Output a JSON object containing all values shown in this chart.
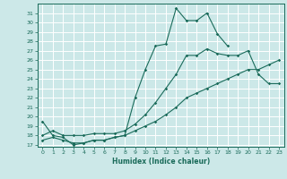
{
  "xlabel": "Humidex (Indice chaleur)",
  "ylabel": "",
  "background_color": "#cce8e8",
  "grid_color": "#ffffff",
  "line_color": "#1a6b5a",
  "xlim": [
    -0.5,
    23.5
  ],
  "ylim": [
    17,
    31.5
  ],
  "yticks": [
    17,
    18,
    19,
    20,
    21,
    22,
    23,
    24,
    25,
    26,
    27,
    28,
    29,
    30,
    31
  ],
  "xticks": [
    0,
    1,
    2,
    3,
    4,
    5,
    6,
    7,
    8,
    9,
    10,
    11,
    12,
    13,
    14,
    15,
    16,
    17,
    18,
    19,
    20,
    21,
    22,
    23
  ],
  "curve1_x": [
    0,
    1,
    2,
    3,
    4,
    5,
    6,
    7,
    8,
    9,
    10,
    11,
    12,
    13,
    14,
    15,
    16,
    17,
    18
  ],
  "curve1_y": [
    19.5,
    18.0,
    17.8,
    17.0,
    17.2,
    17.5,
    17.5,
    17.8,
    18.0,
    22.0,
    25.0,
    27.5,
    27.7,
    31.5,
    30.2,
    30.2,
    31.0,
    28.8,
    27.5
  ],
  "curve2_x": [
    0,
    1,
    2,
    3,
    4,
    5,
    6,
    7,
    8,
    9,
    10,
    11,
    12,
    13,
    14,
    15,
    16,
    17,
    18,
    19,
    20,
    21,
    22,
    23
  ],
  "curve2_y": [
    18.0,
    18.5,
    18.0,
    18.0,
    18.0,
    18.2,
    18.2,
    18.2,
    18.5,
    19.2,
    20.2,
    21.5,
    23.0,
    24.5,
    26.5,
    26.5,
    27.2,
    26.7,
    26.5,
    26.5,
    27.0,
    24.5,
    23.5,
    23.5
  ],
  "curve3_x": [
    0,
    1,
    2,
    3,
    4,
    5,
    6,
    7,
    8,
    9,
    10,
    11,
    12,
    13,
    14,
    15,
    16,
    17,
    18,
    19,
    20,
    21,
    22,
    23
  ],
  "curve3_y": [
    17.5,
    17.8,
    17.5,
    17.2,
    17.2,
    17.5,
    17.5,
    17.8,
    18.0,
    18.5,
    19.0,
    19.5,
    20.2,
    21.0,
    22.0,
    22.5,
    23.0,
    23.5,
    24.0,
    24.5,
    25.0,
    25.0,
    25.5,
    26.0
  ]
}
